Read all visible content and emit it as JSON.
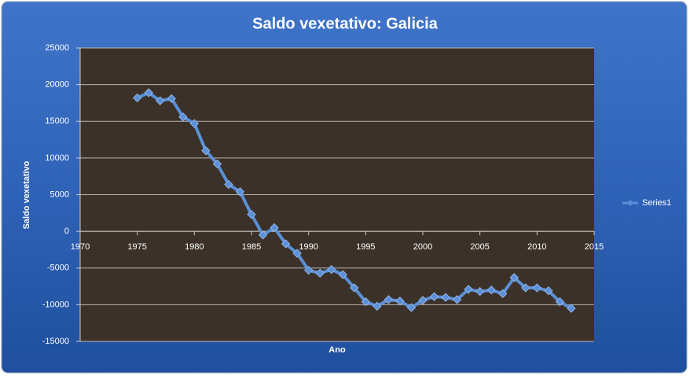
{
  "chart_data": {
    "type": "line",
    "title": "Saldo vexetativo: Galicia",
    "x_label": "Ano",
    "y_label": "Saldo vexetativo",
    "x": [
      1975,
      1976,
      1977,
      1978,
      1979,
      1980,
      1981,
      1982,
      1983,
      1984,
      1985,
      1986,
      1987,
      1988,
      1989,
      1990,
      1991,
      1992,
      1993,
      1994,
      1995,
      1996,
      1997,
      1998,
      1999,
      2000,
      2001,
      2002,
      2003,
      2004,
      2005,
      2006,
      2007,
      2008,
      2009,
      2010,
      2011,
      2012,
      2013
    ],
    "series": [
      {
        "name": "Series1",
        "color": "#5b8fd6",
        "values": [
          18200,
          18900,
          17800,
          18100,
          15600,
          14700,
          11000,
          9200,
          6400,
          5400,
          2300,
          -500,
          500,
          -1700,
          -3000,
          -5300,
          -5700,
          -5200,
          -5900,
          -7700,
          -9600,
          -10200,
          -9300,
          -9500,
          -10400,
          -9400,
          -8900,
          -9000,
          -9300,
          -7900,
          -8200,
          -8000,
          -8500,
          -6300,
          -7700,
          -7700,
          -8100,
          -9600,
          -10500
        ]
      }
    ],
    "xlim": [
      1970,
      2015
    ],
    "xticks": [
      1970,
      1975,
      1980,
      1985,
      1990,
      1995,
      2000,
      2005,
      2010,
      2015
    ],
    "ylim": [
      -15000,
      25000
    ],
    "yticks": [
      -15000,
      -10000,
      -5000,
      0,
      5000,
      10000,
      15000,
      20000,
      25000
    ],
    "grid": true,
    "legend": "right"
  }
}
